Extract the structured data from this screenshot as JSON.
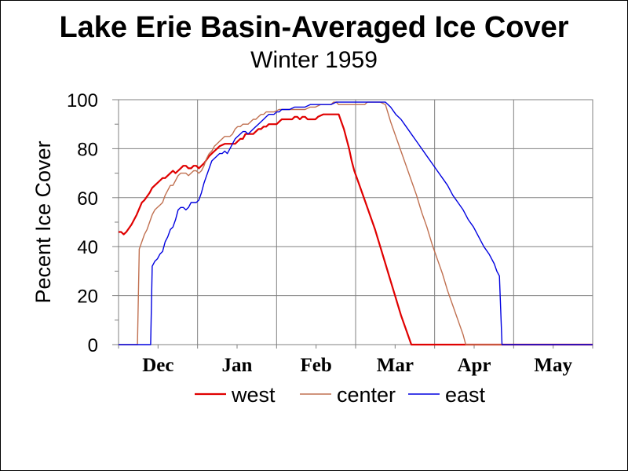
{
  "chart_data": {
    "type": "line",
    "title": "Lake Erie Basin-Averaged Ice Cover",
    "subtitle": "Winter 1959",
    "xlabel": "",
    "ylabel": "Pecent Ice Cover",
    "x_tick_labels": [
      "Dec",
      "Jan",
      "Feb",
      "Mar",
      "Apr",
      "May"
    ],
    "ylim": [
      0,
      100
    ],
    "y_ticks": [
      0,
      20,
      40,
      60,
      80,
      100
    ],
    "xlim_days": [
      0,
      183
    ],
    "grid": true,
    "legend_position": "bottom",
    "series": [
      {
        "name": "west",
        "color": "#e00000",
        "points": [
          [
            0,
            46
          ],
          [
            1,
            46
          ],
          [
            2,
            45
          ],
          [
            3,
            46
          ],
          [
            5,
            49
          ],
          [
            7,
            53
          ],
          [
            9,
            58
          ],
          [
            10,
            59
          ],
          [
            12,
            62
          ],
          [
            13,
            64
          ],
          [
            14,
            65
          ],
          [
            16,
            67
          ],
          [
            17,
            68
          ],
          [
            18,
            68
          ],
          [
            19,
            69
          ],
          [
            20,
            70
          ],
          [
            21,
            71
          ],
          [
            22,
            70
          ],
          [
            23,
            71
          ],
          [
            24,
            72
          ],
          [
            25,
            73
          ],
          [
            26,
            73
          ],
          [
            27,
            72
          ],
          [
            28,
            72
          ],
          [
            29,
            73
          ],
          [
            30,
            73
          ],
          [
            31,
            72
          ],
          [
            32,
            73
          ],
          [
            33,
            74
          ],
          [
            35,
            77
          ],
          [
            36,
            78
          ],
          [
            37,
            79
          ],
          [
            38,
            80
          ],
          [
            39,
            81
          ],
          [
            41,
            82
          ],
          [
            43,
            82
          ],
          [
            45,
            82
          ],
          [
            46,
            83
          ],
          [
            47,
            84
          ],
          [
            48,
            84
          ],
          [
            49,
            86
          ],
          [
            50,
            86
          ],
          [
            52,
            86
          ],
          [
            53,
            87
          ],
          [
            54,
            88
          ],
          [
            55,
            88
          ],
          [
            56,
            89
          ],
          [
            57,
            89
          ],
          [
            58,
            90
          ],
          [
            61,
            90
          ],
          [
            62,
            91
          ],
          [
            63,
            92
          ],
          [
            65,
            92
          ],
          [
            66,
            92
          ],
          [
            67,
            92
          ],
          [
            68,
            93
          ],
          [
            69,
            93
          ],
          [
            70,
            92
          ],
          [
            71,
            93
          ],
          [
            72,
            93
          ],
          [
            73,
            92
          ],
          [
            75,
            92
          ],
          [
            76,
            92
          ],
          [
            77,
            93
          ],
          [
            79,
            94
          ],
          [
            85,
            94
          ],
          [
            86,
            91
          ],
          [
            87,
            88
          ],
          [
            88,
            84
          ],
          [
            89,
            80
          ],
          [
            90,
            75
          ],
          [
            91,
            71
          ],
          [
            93,
            65
          ],
          [
            95,
            59
          ],
          [
            97,
            53
          ],
          [
            99,
            47
          ],
          [
            101,
            40
          ],
          [
            103,
            33
          ],
          [
            105,
            26
          ],
          [
            107,
            19
          ],
          [
            109,
            12
          ],
          [
            111,
            6
          ],
          [
            113,
            0
          ],
          [
            183,
            0
          ]
        ]
      },
      {
        "name": "center",
        "color": "#c07050",
        "points": [
          [
            0,
            0
          ],
          [
            7,
            0
          ],
          [
            7.3,
            0
          ],
          [
            8,
            39
          ],
          [
            9,
            42
          ],
          [
            10,
            45
          ],
          [
            11,
            47
          ],
          [
            12,
            50
          ],
          [
            13,
            53
          ],
          [
            14,
            55
          ],
          [
            15,
            56
          ],
          [
            16,
            57
          ],
          [
            17,
            58
          ],
          [
            18,
            61
          ],
          [
            19,
            63
          ],
          [
            20,
            65
          ],
          [
            21,
            65
          ],
          [
            22,
            67
          ],
          [
            23,
            69
          ],
          [
            24,
            70
          ],
          [
            25,
            70
          ],
          [
            26,
            70
          ],
          [
            27,
            69
          ],
          [
            28,
            70
          ],
          [
            29,
            71
          ],
          [
            30,
            71
          ],
          [
            31,
            70
          ],
          [
            32,
            71
          ],
          [
            33,
            73
          ],
          [
            34,
            76
          ],
          [
            35,
            78
          ],
          [
            36,
            79
          ],
          [
            37,
            81
          ],
          [
            38,
            82
          ],
          [
            39,
            83
          ],
          [
            40,
            84
          ],
          [
            41,
            85
          ],
          [
            42,
            85
          ],
          [
            43,
            85
          ],
          [
            44,
            86
          ],
          [
            45,
            88
          ],
          [
            46,
            89
          ],
          [
            47,
            89
          ],
          [
            48,
            90
          ],
          [
            49,
            90
          ],
          [
            50,
            90
          ],
          [
            51,
            91
          ],
          [
            52,
            92
          ],
          [
            53,
            92
          ],
          [
            54,
            93
          ],
          [
            55,
            94
          ],
          [
            56,
            94
          ],
          [
            57,
            95
          ],
          [
            58,
            95
          ],
          [
            60,
            95
          ],
          [
            62,
            96
          ],
          [
            64,
            96
          ],
          [
            66,
            96
          ],
          [
            68,
            96
          ],
          [
            70,
            96
          ],
          [
            72,
            96
          ],
          [
            74,
            97
          ],
          [
            76,
            97
          ],
          [
            78,
            98
          ],
          [
            80,
            98
          ],
          [
            82,
            98
          ],
          [
            83,
            99
          ],
          [
            84,
            99
          ],
          [
            85,
            98
          ],
          [
            87,
            98
          ],
          [
            90,
            98
          ],
          [
            95,
            98
          ],
          [
            96,
            99
          ],
          [
            99,
            99
          ],
          [
            100,
            99
          ],
          [
            101,
            99
          ],
          [
            103,
            98
          ],
          [
            105,
            91
          ],
          [
            107,
            85
          ],
          [
            109,
            79
          ],
          [
            111,
            73
          ],
          [
            113,
            67
          ],
          [
            115,
            61
          ],
          [
            117,
            54
          ],
          [
            119,
            48
          ],
          [
            121,
            41
          ],
          [
            123,
            35
          ],
          [
            125,
            29
          ],
          [
            127,
            22
          ],
          [
            129,
            16
          ],
          [
            131,
            10
          ],
          [
            133,
            4
          ],
          [
            134,
            0
          ],
          [
            183,
            0
          ]
        ]
      },
      {
        "name": "east",
        "color": "#0000e0",
        "points": [
          [
            0,
            0
          ],
          [
            12,
            0
          ],
          [
            12.4,
            0
          ],
          [
            13,
            32
          ],
          [
            14,
            34
          ],
          [
            15,
            35
          ],
          [
            16,
            37
          ],
          [
            17,
            38
          ],
          [
            18,
            42
          ],
          [
            19,
            44
          ],
          [
            20,
            47
          ],
          [
            21,
            48
          ],
          [
            22,
            51
          ],
          [
            23,
            55
          ],
          [
            24,
            56
          ],
          [
            25,
            56
          ],
          [
            26,
            55
          ],
          [
            27,
            56
          ],
          [
            28,
            58
          ],
          [
            29,
            58
          ],
          [
            30,
            58
          ],
          [
            31,
            59
          ],
          [
            32,
            62
          ],
          [
            33,
            66
          ],
          [
            34,
            69
          ],
          [
            35,
            72
          ],
          [
            36,
            75
          ],
          [
            37,
            76
          ],
          [
            38,
            77
          ],
          [
            39,
            78
          ],
          [
            40,
            78
          ],
          [
            41,
            79
          ],
          [
            42,
            78
          ],
          [
            43,
            80
          ],
          [
            44,
            82
          ],
          [
            45,
            84
          ],
          [
            46,
            85
          ],
          [
            47,
            86
          ],
          [
            48,
            87
          ],
          [
            49,
            87
          ],
          [
            50,
            86
          ],
          [
            51,
            87
          ],
          [
            52,
            88
          ],
          [
            53,
            89
          ],
          [
            54,
            90
          ],
          [
            55,
            91
          ],
          [
            56,
            92
          ],
          [
            57,
            93
          ],
          [
            58,
            94
          ],
          [
            59,
            94
          ],
          [
            60,
            94
          ],
          [
            61,
            95
          ],
          [
            62,
            95
          ],
          [
            63,
            96
          ],
          [
            64,
            96
          ],
          [
            66,
            96
          ],
          [
            68,
            97
          ],
          [
            70,
            97
          ],
          [
            72,
            97
          ],
          [
            74,
            98
          ],
          [
            76,
            98
          ],
          [
            78,
            98
          ],
          [
            80,
            98
          ],
          [
            82,
            98
          ],
          [
            84,
            99
          ],
          [
            88,
            99
          ],
          [
            92,
            99
          ],
          [
            96,
            99
          ],
          [
            100,
            99
          ],
          [
            103,
            99
          ],
          [
            105,
            97
          ],
          [
            107,
            94
          ],
          [
            109,
            92
          ],
          [
            111,
            89
          ],
          [
            113,
            86
          ],
          [
            115,
            83
          ],
          [
            117,
            80
          ],
          [
            119,
            77
          ],
          [
            121,
            74
          ],
          [
            123,
            71
          ],
          [
            125,
            68
          ],
          [
            127,
            65
          ],
          [
            129,
            61
          ],
          [
            131,
            58
          ],
          [
            133,
            55
          ],
          [
            135,
            51
          ],
          [
            137,
            48
          ],
          [
            139,
            44
          ],
          [
            141,
            40
          ],
          [
            143,
            37
          ],
          [
            145,
            33
          ],
          [
            146,
            30
          ],
          [
            147,
            28
          ],
          [
            148,
            0
          ],
          [
            183,
            0
          ]
        ]
      }
    ]
  }
}
